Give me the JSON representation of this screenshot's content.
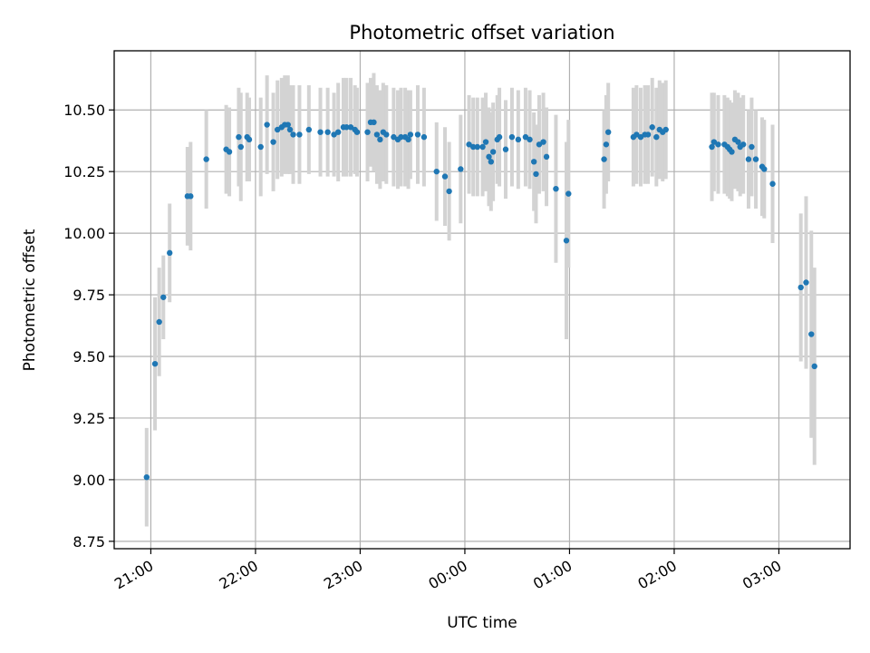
{
  "chart_data": {
    "type": "scatter",
    "title": "Photometric offset variation",
    "xlabel": "UTC time",
    "ylabel": "Photometric offset",
    "x_unit": "hours (UTC, times after midnight shown as 24+)",
    "xlim": [
      20.65,
      27.68
    ],
    "ylim": [
      8.72,
      10.74
    ],
    "grid": true,
    "x_ticks": [
      {
        "value": 21,
        "label": "21:00"
      },
      {
        "value": 22,
        "label": "22:00"
      },
      {
        "value": 23,
        "label": "23:00"
      },
      {
        "value": 24,
        "label": "00:00"
      },
      {
        "value": 25,
        "label": "01:00"
      },
      {
        "value": 26,
        "label": "02:00"
      },
      {
        "value": 27,
        "label": "03:00"
      }
    ],
    "y_ticks": [
      {
        "value": 8.75,
        "label": "8.75"
      },
      {
        "value": 9.0,
        "label": "9.00"
      },
      {
        "value": 9.25,
        "label": "9.25"
      },
      {
        "value": 9.5,
        "label": "9.50"
      },
      {
        "value": 9.75,
        "label": "9.75"
      },
      {
        "value": 10.0,
        "label": "10.00"
      },
      {
        "value": 10.25,
        "label": "10.25"
      },
      {
        "value": 10.5,
        "label": "10.50"
      }
    ],
    "colors": {
      "marker": "#1f77b4",
      "errorbar": "#d3d3d3"
    },
    "series": [
      {
        "points": [
          [
            20.96,
            9.01,
            0.2
          ],
          [
            21.04,
            9.47,
            0.27
          ],
          [
            21.08,
            9.64,
            0.22
          ],
          [
            21.12,
            9.74,
            0.17
          ],
          [
            21.18,
            9.92,
            0.2
          ],
          [
            21.35,
            10.15,
            0.2
          ],
          [
            21.38,
            10.15,
            0.22
          ],
          [
            21.53,
            10.3,
            0.2
          ],
          [
            21.72,
            10.34,
            0.18
          ],
          [
            21.75,
            10.33,
            0.18
          ],
          [
            21.84,
            10.39,
            0.2
          ],
          [
            21.86,
            10.35,
            0.22
          ],
          [
            21.92,
            10.39,
            0.18
          ],
          [
            21.94,
            10.38,
            0.17
          ],
          [
            22.05,
            10.35,
            0.2
          ],
          [
            22.11,
            10.44,
            0.2
          ],
          [
            22.17,
            10.37,
            0.2
          ],
          [
            22.21,
            10.42,
            0.2
          ],
          [
            22.25,
            10.43,
            0.2
          ],
          [
            22.28,
            10.44,
            0.2
          ],
          [
            22.31,
            10.44,
            0.2
          ],
          [
            22.33,
            10.42,
            0.18
          ],
          [
            22.36,
            10.4,
            0.2
          ],
          [
            22.42,
            10.4,
            0.2
          ],
          [
            22.51,
            10.42,
            0.18
          ],
          [
            22.62,
            10.41,
            0.18
          ],
          [
            22.69,
            10.41,
            0.18
          ],
          [
            22.75,
            10.4,
            0.17
          ],
          [
            22.79,
            10.41,
            0.2
          ],
          [
            22.84,
            10.43,
            0.2
          ],
          [
            22.87,
            10.43,
            0.2
          ],
          [
            22.91,
            10.43,
            0.2
          ],
          [
            22.95,
            10.42,
            0.18
          ],
          [
            22.97,
            10.41,
            0.18
          ],
          [
            23.07,
            10.41,
            0.2
          ],
          [
            23.1,
            10.45,
            0.18
          ],
          [
            23.13,
            10.45,
            0.2
          ],
          [
            23.16,
            10.4,
            0.2
          ],
          [
            23.19,
            10.38,
            0.2
          ],
          [
            23.22,
            10.41,
            0.2
          ],
          [
            23.25,
            10.4,
            0.2
          ],
          [
            23.32,
            10.39,
            0.2
          ],
          [
            23.36,
            10.38,
            0.2
          ],
          [
            23.39,
            10.39,
            0.2
          ],
          [
            23.43,
            10.39,
            0.2
          ],
          [
            23.46,
            10.38,
            0.2
          ],
          [
            23.48,
            10.4,
            0.18
          ],
          [
            23.55,
            10.4,
            0.2
          ],
          [
            23.61,
            10.39,
            0.2
          ],
          [
            23.73,
            10.25,
            0.2
          ],
          [
            23.81,
            10.23,
            0.2
          ],
          [
            23.85,
            10.17,
            0.2
          ],
          [
            23.96,
            10.26,
            0.22
          ],
          [
            24.04,
            10.36,
            0.2
          ],
          [
            24.08,
            10.35,
            0.2
          ],
          [
            24.12,
            10.35,
            0.2
          ],
          [
            24.17,
            10.35,
            0.2
          ],
          [
            24.2,
            10.37,
            0.2
          ],
          [
            24.23,
            10.31,
            0.2
          ],
          [
            24.25,
            10.29,
            0.2
          ],
          [
            24.27,
            10.33,
            0.2
          ],
          [
            24.31,
            10.38,
            0.18
          ],
          [
            24.33,
            10.39,
            0.2
          ],
          [
            24.39,
            10.34,
            0.2
          ],
          [
            24.45,
            10.39,
            0.2
          ],
          [
            24.51,
            10.38,
            0.2
          ],
          [
            24.58,
            10.39,
            0.2
          ],
          [
            24.62,
            10.38,
            0.2
          ],
          [
            24.66,
            10.29,
            0.2
          ],
          [
            24.68,
            10.24,
            0.2
          ],
          [
            24.71,
            10.36,
            0.2
          ],
          [
            24.75,
            10.37,
            0.2
          ],
          [
            24.78,
            10.31,
            0.2
          ],
          [
            24.87,
            10.18,
            0.3
          ],
          [
            24.97,
            9.97,
            0.4
          ],
          [
            24.99,
            10.16,
            0.3
          ],
          [
            25.33,
            10.3,
            0.2
          ],
          [
            25.35,
            10.36,
            0.2
          ],
          [
            25.37,
            10.41,
            0.2
          ],
          [
            25.61,
            10.39,
            0.2
          ],
          [
            25.64,
            10.4,
            0.2
          ],
          [
            25.68,
            10.39,
            0.2
          ],
          [
            25.72,
            10.4,
            0.2
          ],
          [
            25.75,
            10.4,
            0.2
          ],
          [
            25.79,
            10.43,
            0.2
          ],
          [
            25.83,
            10.39,
            0.2
          ],
          [
            25.86,
            10.42,
            0.2
          ],
          [
            25.89,
            10.41,
            0.2
          ],
          [
            25.92,
            10.42,
            0.2
          ],
          [
            26.36,
            10.35,
            0.22
          ],
          [
            26.38,
            10.37,
            0.2
          ],
          [
            26.42,
            10.36,
            0.2
          ],
          [
            26.48,
            10.36,
            0.2
          ],
          [
            26.51,
            10.35,
            0.2
          ],
          [
            26.53,
            10.34,
            0.2
          ],
          [
            26.55,
            10.33,
            0.2
          ],
          [
            26.58,
            10.38,
            0.2
          ],
          [
            26.61,
            10.37,
            0.2
          ],
          [
            26.63,
            10.35,
            0.2
          ],
          [
            26.66,
            10.36,
            0.2
          ],
          [
            26.71,
            10.3,
            0.2
          ],
          [
            26.74,
            10.35,
            0.2
          ],
          [
            26.78,
            10.3,
            0.2
          ],
          [
            26.84,
            10.27,
            0.2
          ],
          [
            26.86,
            10.26,
            0.2
          ],
          [
            26.94,
            10.2,
            0.24
          ],
          [
            27.21,
            9.78,
            0.3
          ],
          [
            27.26,
            9.8,
            0.35
          ],
          [
            27.31,
            9.59,
            0.42
          ],
          [
            27.34,
            9.46,
            0.4
          ]
        ]
      }
    ]
  }
}
